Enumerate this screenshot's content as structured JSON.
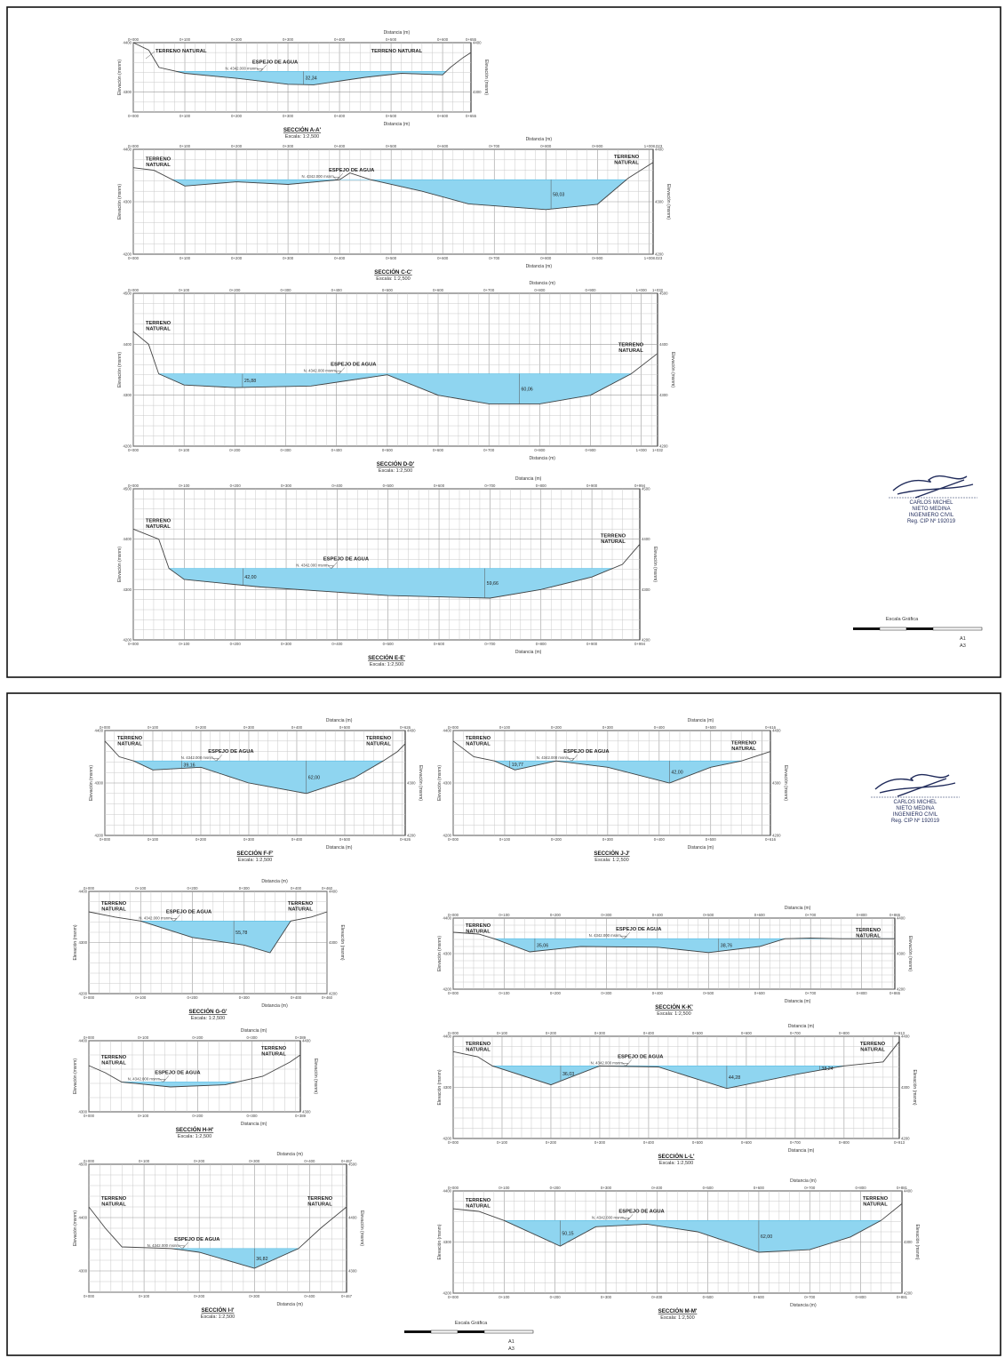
{
  "common": {
    "distance_label": "Distancia (m)",
    "elevation_label": "Elevación (msnm)",
    "terrain_label": "TERRENO NATURAL",
    "terrain_line1": "TERRENO",
    "terrain_line2": "NATURAL",
    "water_label": "ESPEJO DE AGUA",
    "nivel_label": "N. 4342.000 msnm",
    "scale_text": "Escala: 1:2,500"
  },
  "signature": {
    "name1": "CARLOS MICHEL",
    "name2": "NIETO MEDINA",
    "profession": "INGENIERO CIVIL",
    "registration": "Reg. CIP Nº 192019"
  },
  "graphic_scale": {
    "title": "Escala Gráfica",
    "sheet_a1": "A1",
    "sheet_a3": "A3"
  },
  "sections": [
    {
      "title": "SECCIÓN A-A'",
      "length_label": "0+655",
      "xmax": 655,
      "ymin": 4260,
      "ymax": 4400,
      "water": 4342,
      "depth_labels": [
        {
          "x": 330,
          "value": "32,34"
        }
      ],
      "profile": [
        [
          0,
          4400
        ],
        [
          30,
          4385
        ],
        [
          50,
          4350
        ],
        [
          100,
          4338
        ],
        [
          200,
          4328
        ],
        [
          300,
          4316
        ],
        [
          350,
          4315
        ],
        [
          450,
          4330
        ],
        [
          520,
          4338
        ],
        [
          600,
          4335
        ],
        [
          615,
          4350
        ],
        [
          640,
          4370
        ],
        [
          655,
          4380
        ]
      ]
    },
    {
      "title": "SECCIÓN C-C'",
      "length_label": "1+008.023",
      "xmax": 1008,
      "ymin": 4200,
      "ymax": 4400,
      "water": 4342,
      "depth_labels": [
        {
          "x": 810,
          "value": "58,03"
        }
      ],
      "profile": [
        [
          0,
          4365
        ],
        [
          40,
          4360
        ],
        [
          100,
          4330
        ],
        [
          200,
          4338
        ],
        [
          300,
          4333
        ],
        [
          400,
          4342
        ],
        [
          420,
          4355
        ],
        [
          460,
          4342
        ],
        [
          560,
          4320
        ],
        [
          650,
          4296
        ],
        [
          800,
          4285
        ],
        [
          900,
          4295
        ],
        [
          960,
          4345
        ],
        [
          1008,
          4375
        ]
      ]
    },
    {
      "title": "SECCIÓN D-D'",
      "length_label": "1+032",
      "xmax": 1032,
      "ymin": 4200,
      "ymax": 4500,
      "water": 4342,
      "depth_labels": [
        {
          "x": 215,
          "value": "25,88"
        },
        {
          "x": 760,
          "value": "60,06"
        }
      ],
      "profile": [
        [
          0,
          4425
        ],
        [
          30,
          4400
        ],
        [
          50,
          4342
        ],
        [
          100,
          4320
        ],
        [
          200,
          4315
        ],
        [
          350,
          4318
        ],
        [
          500,
          4340
        ],
        [
          600,
          4300
        ],
        [
          700,
          4283
        ],
        [
          800,
          4283
        ],
        [
          900,
          4300
        ],
        [
          980,
          4342
        ],
        [
          1032,
          4382
        ]
      ]
    },
    {
      "title": "SECCIÓN E-E'",
      "length_label": "0+994",
      "xmax": 994,
      "ymin": 4200,
      "ymax": 4500,
      "water": 4342,
      "depth_labels": [
        {
          "x": 215,
          "value": "42,00"
        },
        {
          "x": 690,
          "value": "59,66"
        }
      ],
      "profile": [
        [
          0,
          4420
        ],
        [
          50,
          4400
        ],
        [
          70,
          4342
        ],
        [
          100,
          4320
        ],
        [
          250,
          4305
        ],
        [
          500,
          4288
        ],
        [
          700,
          4283
        ],
        [
          800,
          4300
        ],
        [
          900,
          4325
        ],
        [
          960,
          4350
        ],
        [
          994,
          4390
        ]
      ]
    },
    {
      "title": "SECCIÓN F-F'",
      "length_label": "0+626",
      "xmax": 626,
      "ymin": 4200,
      "ymax": 4400,
      "water": 4342,
      "depth_labels": [
        {
          "x": 160,
          "value": "39,16"
        },
        {
          "x": 420,
          "value": "62,00"
        }
      ],
      "profile": [
        [
          0,
          4380
        ],
        [
          30,
          4350
        ],
        [
          60,
          4342
        ],
        [
          100,
          4325
        ],
        [
          200,
          4330
        ],
        [
          300,
          4300
        ],
        [
          420,
          4280
        ],
        [
          520,
          4310
        ],
        [
          580,
          4342
        ],
        [
          610,
          4360
        ],
        [
          626,
          4375
        ]
      ]
    },
    {
      "title": "SECCIÓN J-J'",
      "length_label": "0+616",
      "xmax": 616,
      "ymin": 4200,
      "ymax": 4400,
      "water": 4342,
      "depth_labels": [
        {
          "x": 110,
          "value": "19,77"
        },
        {
          "x": 420,
          "value": "42,00"
        }
      ],
      "profile": [
        [
          0,
          4380
        ],
        [
          40,
          4350
        ],
        [
          80,
          4342
        ],
        [
          120,
          4325
        ],
        [
          200,
          4342
        ],
        [
          300,
          4330
        ],
        [
          420,
          4300
        ],
        [
          500,
          4330
        ],
        [
          560,
          4342
        ],
        [
          616,
          4360
        ]
      ]
    },
    {
      "title": "SECCIÓN G-G'",
      "length_label": "0+460",
      "xmax": 460,
      "ymin": 4200,
      "ymax": 4400,
      "water": 4342,
      "depth_labels": [
        {
          "x": 280,
          "value": "55,78"
        }
      ],
      "profile": [
        [
          0,
          4360
        ],
        [
          50,
          4350
        ],
        [
          100,
          4342
        ],
        [
          200,
          4310
        ],
        [
          300,
          4295
        ],
        [
          350,
          4280
        ],
        [
          390,
          4342
        ],
        [
          430,
          4350
        ],
        [
          460,
          4360
        ]
      ]
    },
    {
      "title": "SECCIÓN K-K'",
      "length_label": "0+865",
      "xmax": 865,
      "ymin": 4200,
      "ymax": 4400,
      "water": 4342,
      "depth_labels": [
        {
          "x": 160,
          "value": "35,06"
        },
        {
          "x": 520,
          "value": "38,76"
        }
      ],
      "profile": [
        [
          0,
          4360
        ],
        [
          50,
          4355
        ],
        [
          80,
          4342
        ],
        [
          150,
          4305
        ],
        [
          250,
          4320
        ],
        [
          400,
          4318
        ],
        [
          500,
          4303
        ],
        [
          600,
          4320
        ],
        [
          650,
          4342
        ],
        [
          700,
          4344
        ],
        [
          760,
          4342
        ],
        [
          865,
          4342
        ]
      ]
    },
    {
      "title": "SECCIÓN H-H'",
      "length_label": "0+389",
      "xmax": 389,
      "ymin": 4300,
      "ymax": 4400,
      "water": 4342,
      "depth_labels": [],
      "profile": [
        [
          0,
          4365
        ],
        [
          30,
          4355
        ],
        [
          60,
          4342
        ],
        [
          150,
          4335
        ],
        [
          250,
          4338
        ],
        [
          320,
          4350
        ],
        [
          370,
          4370
        ],
        [
          389,
          4380
        ]
      ]
    },
    {
      "title": "SECCIÓN L-L'",
      "length_label": "0+913",
      "xmax": 913,
      "ymin": 4200,
      "ymax": 4400,
      "water": 4342,
      "depth_labels": [
        {
          "x": 220,
          "value": "36,03"
        },
        {
          "x": 560,
          "value": "44,28"
        },
        {
          "x": 750,
          "value": "38,24"
        }
      ],
      "profile": [
        [
          0,
          4370
        ],
        [
          50,
          4360
        ],
        [
          80,
          4342
        ],
        [
          200,
          4305
        ],
        [
          300,
          4342
        ],
        [
          420,
          4340
        ],
        [
          560,
          4298
        ],
        [
          700,
          4325
        ],
        [
          800,
          4342
        ],
        [
          880,
          4350
        ],
        [
          913,
          4390
        ]
      ]
    },
    {
      "title": "SECCIÓN I-I'",
      "length_label": "0+467",
      "xmax": 467,
      "ymin": 4260,
      "ymax": 4500,
      "water": 4342,
      "depth_labels": [
        {
          "x": 300,
          "value": "36,82"
        }
      ],
      "profile": [
        [
          0,
          4420
        ],
        [
          30,
          4380
        ],
        [
          60,
          4345
        ],
        [
          150,
          4342
        ],
        [
          200,
          4335
        ],
        [
          300,
          4305
        ],
        [
          380,
          4342
        ],
        [
          420,
          4380
        ],
        [
          467,
          4420
        ]
      ]
    },
    {
      "title": "SECCIÓN M-M'",
      "length_label": "0+881",
      "xmax": 881,
      "ymin": 4200,
      "ymax": 4400,
      "water": 4342,
      "depth_labels": [
        {
          "x": 210,
          "value": "50,15"
        },
        {
          "x": 600,
          "value": "62,00"
        }
      ],
      "profile": [
        [
          0,
          4365
        ],
        [
          50,
          4360
        ],
        [
          100,
          4342
        ],
        [
          210,
          4292
        ],
        [
          280,
          4330
        ],
        [
          380,
          4335
        ],
        [
          480,
          4320
        ],
        [
          600,
          4280
        ],
        [
          700,
          4285
        ],
        [
          780,
          4310
        ],
        [
          840,
          4342
        ],
        [
          881,
          4375
        ]
      ]
    }
  ]
}
